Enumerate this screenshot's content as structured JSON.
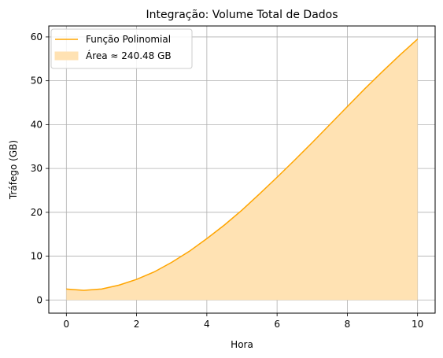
{
  "chart_data": {
    "type": "area",
    "title": "Integração: Volume Total de Dados",
    "xlabel": "Hora",
    "ylabel": "Tráfego (GB)",
    "xlim": [
      -0.5,
      10.5
    ],
    "ylim": [
      -3,
      62.5
    ],
    "xticks": [
      0,
      2,
      4,
      6,
      8,
      10
    ],
    "yticks": [
      0,
      10,
      20,
      30,
      40,
      50,
      60
    ],
    "grid": true,
    "legend_position": "top-left",
    "line_color": "#ffa500",
    "fill_color": "#ffe2b3",
    "series": [
      {
        "name": "Função Polinomial",
        "kind": "line",
        "x": [
          0,
          0.5,
          1,
          1.5,
          2,
          2.5,
          3,
          3.5,
          4,
          4.5,
          5,
          5.5,
          6,
          6.5,
          7,
          7.5,
          8,
          8.5,
          9,
          9.5,
          10
        ],
        "y": [
          2.5,
          2.2,
          2.5,
          3.4,
          4.7,
          6.4,
          8.6,
          11.1,
          14.0,
          17.1,
          20.5,
          24.2,
          28.0,
          31.9,
          35.9,
          40.0,
          44.1,
          48.2,
          52.1,
          55.9,
          59.5
        ]
      },
      {
        "name": "Área ≈ 240.48 GB",
        "kind": "fill"
      }
    ]
  }
}
